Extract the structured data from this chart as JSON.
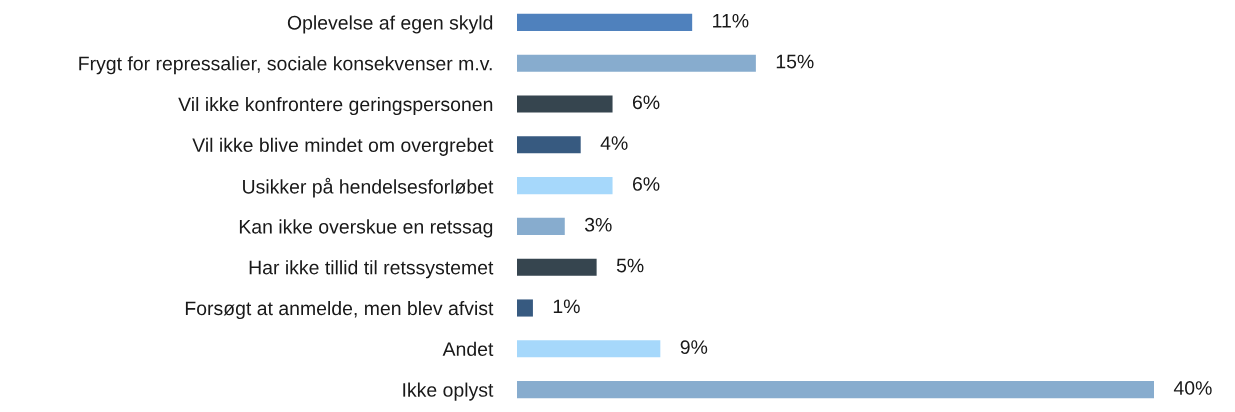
{
  "chart_data": {
    "type": "bar",
    "orientation": "horizontal",
    "tick_labels": "y",
    "categories": [
      "Oplevelse af egen skyld",
      "Frygt for repressalier, sociale konsekvenser m.v.",
      "Vil ikke konfrontere geringspersonen",
      "Vil ikke blive mindet om overgrebet",
      "Usikker på hendelsesforløbet",
      "Kan ikke overskue en retssag",
      "Har ikke tillid til retssystemet",
      "Forsøgt at anmelde, men blev afvist",
      "Andet",
      "Ikke oplyst"
    ],
    "values": [
      11,
      15,
      6,
      4,
      6,
      3,
      5,
      1,
      9,
      40
    ],
    "value_labels": [
      "11%",
      "15%",
      "6%",
      "4%",
      "6%",
      "3%",
      "5%",
      "1%",
      "9%",
      "40%"
    ],
    "colors": [
      "#4f81bd",
      "#87acce",
      "#36454f",
      "#375a80",
      "#a6d8fb",
      "#87acce",
      "#36454f",
      "#375a80",
      "#a6d8fb",
      "#87acce"
    ]
  }
}
